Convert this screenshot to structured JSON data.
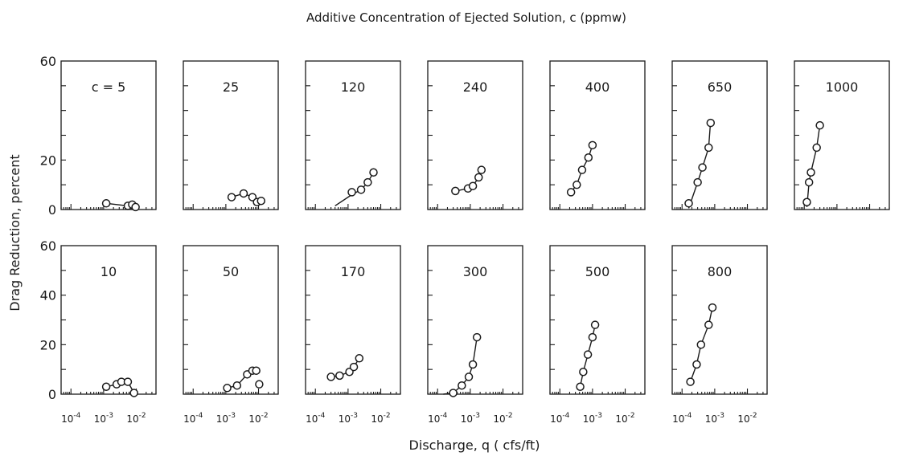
{
  "chart_data": {
    "type": "scatter",
    "title": "Additive Concentration of Ejected Solution, c (ppmw)",
    "xlabel": "Discharge, q ( cfs/ft)",
    "ylabel": "Drag Reduction, percent",
    "x_scale": "log",
    "xlim": [
      5e-05,
      0.04
    ],
    "x_ticks": [
      0.0001,
      0.001,
      0.01
    ],
    "x_tick_labels": {
      "base": "10",
      "exponents": [
        "-4",
        "-3",
        "-2"
      ]
    },
    "ylim": [
      0,
      60
    ],
    "y_ticks_top": [
      0,
      20,
      60
    ],
    "y_ticks_bottom": [
      0,
      20,
      40,
      60
    ],
    "y_minor_ticks": [
      10,
      30,
      40,
      50
    ],
    "grid": false,
    "rows": [
      [
        {
          "label": "c = 5",
          "points": [
            {
              "x": 0.0012,
              "y": 2.5
            },
            {
              "x": 0.0055,
              "y": 1.5
            },
            {
              "x": 0.0075,
              "y": 2
            },
            {
              "x": 0.0095,
              "y": 1
            }
          ],
          "curve": [
            [
              0.0012,
              2.5
            ],
            [
              0.0055,
              1.5
            ],
            [
              0.0095,
              0.8
            ]
          ]
        },
        {
          "label": "25",
          "points": [
            {
              "x": 0.0015,
              "y": 5
            },
            {
              "x": 0.0035,
              "y": 6.5
            },
            {
              "x": 0.0065,
              "y": 5
            },
            {
              "x": 0.009,
              "y": 3
            },
            {
              "x": 0.012,
              "y": 3.5
            }
          ],
          "curve": [
            [
              0.0015,
              5
            ],
            [
              0.0035,
              6.5
            ],
            [
              0.0065,
              5
            ],
            [
              0.012,
              3
            ]
          ]
        },
        {
          "label": "120",
          "points": [
            {
              "x": 0.0013,
              "y": 7
            },
            {
              "x": 0.0025,
              "y": 8
            },
            {
              "x": 0.004,
              "y": 11
            },
            {
              "x": 0.006,
              "y": 15
            }
          ],
          "curve": [
            [
              0.0004,
              1.5
            ],
            [
              0.0013,
              6
            ],
            [
              0.0025,
              8
            ],
            [
              0.004,
              11
            ],
            [
              0.006,
              15
            ]
          ]
        },
        {
          "label": "240",
          "points": [
            {
              "x": 0.00035,
              "y": 7.5
            },
            {
              "x": 0.00085,
              "y": 8.5
            },
            {
              "x": 0.0012,
              "y": 9.5
            },
            {
              "x": 0.0018,
              "y": 13
            },
            {
              "x": 0.0022,
              "y": 16
            }
          ],
          "curve": [
            [
              0.00035,
              7.5
            ],
            [
              0.00085,
              8.5
            ],
            [
              0.0012,
              9.5
            ],
            [
              0.0018,
              13
            ],
            [
              0.0022,
              16
            ]
          ]
        },
        {
          "label": "400",
          "points": [
            {
              "x": 0.00022,
              "y": 7
            },
            {
              "x": 0.00033,
              "y": 10
            },
            {
              "x": 0.00048,
              "y": 16
            },
            {
              "x": 0.00075,
              "y": 21
            },
            {
              "x": 0.001,
              "y": 26
            }
          ],
          "curve": [
            [
              0.00022,
              7
            ],
            [
              0.00033,
              10
            ],
            [
              0.00048,
              16
            ],
            [
              0.00075,
              21
            ],
            [
              0.001,
              26
            ]
          ]
        },
        {
          "label": "650",
          "points": [
            {
              "x": 0.00016,
              "y": 2.5
            },
            {
              "x": 0.0003,
              "y": 11
            },
            {
              "x": 0.00042,
              "y": 17
            },
            {
              "x": 0.00065,
              "y": 25
            },
            {
              "x": 0.00075,
              "y": 35
            }
          ],
          "curve": [
            [
              0.00016,
              0.5
            ],
            [
              0.0003,
              11
            ],
            [
              0.00042,
              17
            ],
            [
              0.00065,
              25
            ],
            [
              0.00075,
              36
            ]
          ]
        },
        {
          "label": "1000",
          "points": [
            {
              "x": 0.00012,
              "y": 3
            },
            {
              "x": 0.00014,
              "y": 11
            },
            {
              "x": 0.00016,
              "y": 15
            },
            {
              "x": 0.00024,
              "y": 25
            },
            {
              "x": 0.0003,
              "y": 34
            }
          ],
          "curve": [
            [
              0.00012,
              1
            ],
            [
              0.00014,
              11
            ],
            [
              0.00016,
              15
            ],
            [
              0.00024,
              25
            ],
            [
              0.0003,
              34
            ]
          ]
        }
      ],
      [
        {
          "label": "10",
          "points": [
            {
              "x": 0.0012,
              "y": 3
            },
            {
              "x": 0.0025,
              "y": 4
            },
            {
              "x": 0.0035,
              "y": 5
            },
            {
              "x": 0.0055,
              "y": 5
            },
            {
              "x": 0.0085,
              "y": 0.5
            }
          ],
          "curve": [
            [
              0.0012,
              3
            ],
            [
              0.0025,
              4
            ],
            [
              0.0035,
              5
            ],
            [
              0.0055,
              5
            ],
            [
              0.0085,
              0.5
            ]
          ]
        },
        {
          "label": "50",
          "points": [
            {
              "x": 0.0011,
              "y": 2.5
            },
            {
              "x": 0.0022,
              "y": 3.5
            },
            {
              "x": 0.0045,
              "y": 8
            },
            {
              "x": 0.0065,
              "y": 9.5
            },
            {
              "x": 0.0085,
              "y": 9.5
            },
            {
              "x": 0.0105,
              "y": 4
            }
          ],
          "curve": [
            [
              0.0011,
              2.5
            ],
            [
              0.0022,
              3.5
            ],
            [
              0.0045,
              8
            ],
            [
              0.0065,
              9.5
            ],
            [
              0.0085,
              9.5
            ]
          ]
        },
        {
          "label": "170",
          "points": [
            {
              "x": 0.0003,
              "y": 7
            },
            {
              "x": 0.00055,
              "y": 7.5
            },
            {
              "x": 0.0011,
              "y": 9
            },
            {
              "x": 0.0015,
              "y": 11
            },
            {
              "x": 0.0022,
              "y": 14.5
            }
          ],
          "curve": [
            [
              0.0003,
              7
            ],
            [
              0.00055,
              7.5
            ],
            [
              0.0011,
              9
            ],
            [
              0.0015,
              11
            ],
            [
              0.0022,
              14.5
            ]
          ]
        },
        {
          "label": "300",
          "points": [
            {
              "x": 0.0003,
              "y": 0.5
            },
            {
              "x": 0.00055,
              "y": 3.5
            },
            {
              "x": 0.0009,
              "y": 7
            },
            {
              "x": 0.0012,
              "y": 12
            },
            {
              "x": 0.0016,
              "y": 23
            }
          ],
          "curve": [
            [
              0.00015,
              0
            ],
            [
              0.0003,
              0.5
            ],
            [
              0.00055,
              3.5
            ],
            [
              0.0009,
              7
            ],
            [
              0.0012,
              12
            ],
            [
              0.0016,
              23
            ]
          ]
        },
        {
          "label": "500",
          "points": [
            {
              "x": 0.00042,
              "y": 3
            },
            {
              "x": 0.00052,
              "y": 9
            },
            {
              "x": 0.00072,
              "y": 16
            },
            {
              "x": 0.001,
              "y": 23
            },
            {
              "x": 0.0012,
              "y": 28
            }
          ],
          "curve": [
            [
              0.00042,
              3
            ],
            [
              0.00052,
              9
            ],
            [
              0.00072,
              16
            ],
            [
              0.001,
              23
            ],
            [
              0.0012,
              28
            ]
          ]
        },
        {
          "label": "800",
          "points": [
            {
              "x": 0.00018,
              "y": 5
            },
            {
              "x": 0.00028,
              "y": 12
            },
            {
              "x": 0.00038,
              "y": 20
            },
            {
              "x": 0.00065,
              "y": 28
            },
            {
              "x": 0.00085,
              "y": 35
            }
          ],
          "curve": [
            [
              0.00018,
              5
            ],
            [
              0.00028,
              12
            ],
            [
              0.00038,
              20
            ],
            [
              0.00065,
              28
            ],
            [
              0.00085,
              35
            ]
          ]
        }
      ]
    ]
  }
}
